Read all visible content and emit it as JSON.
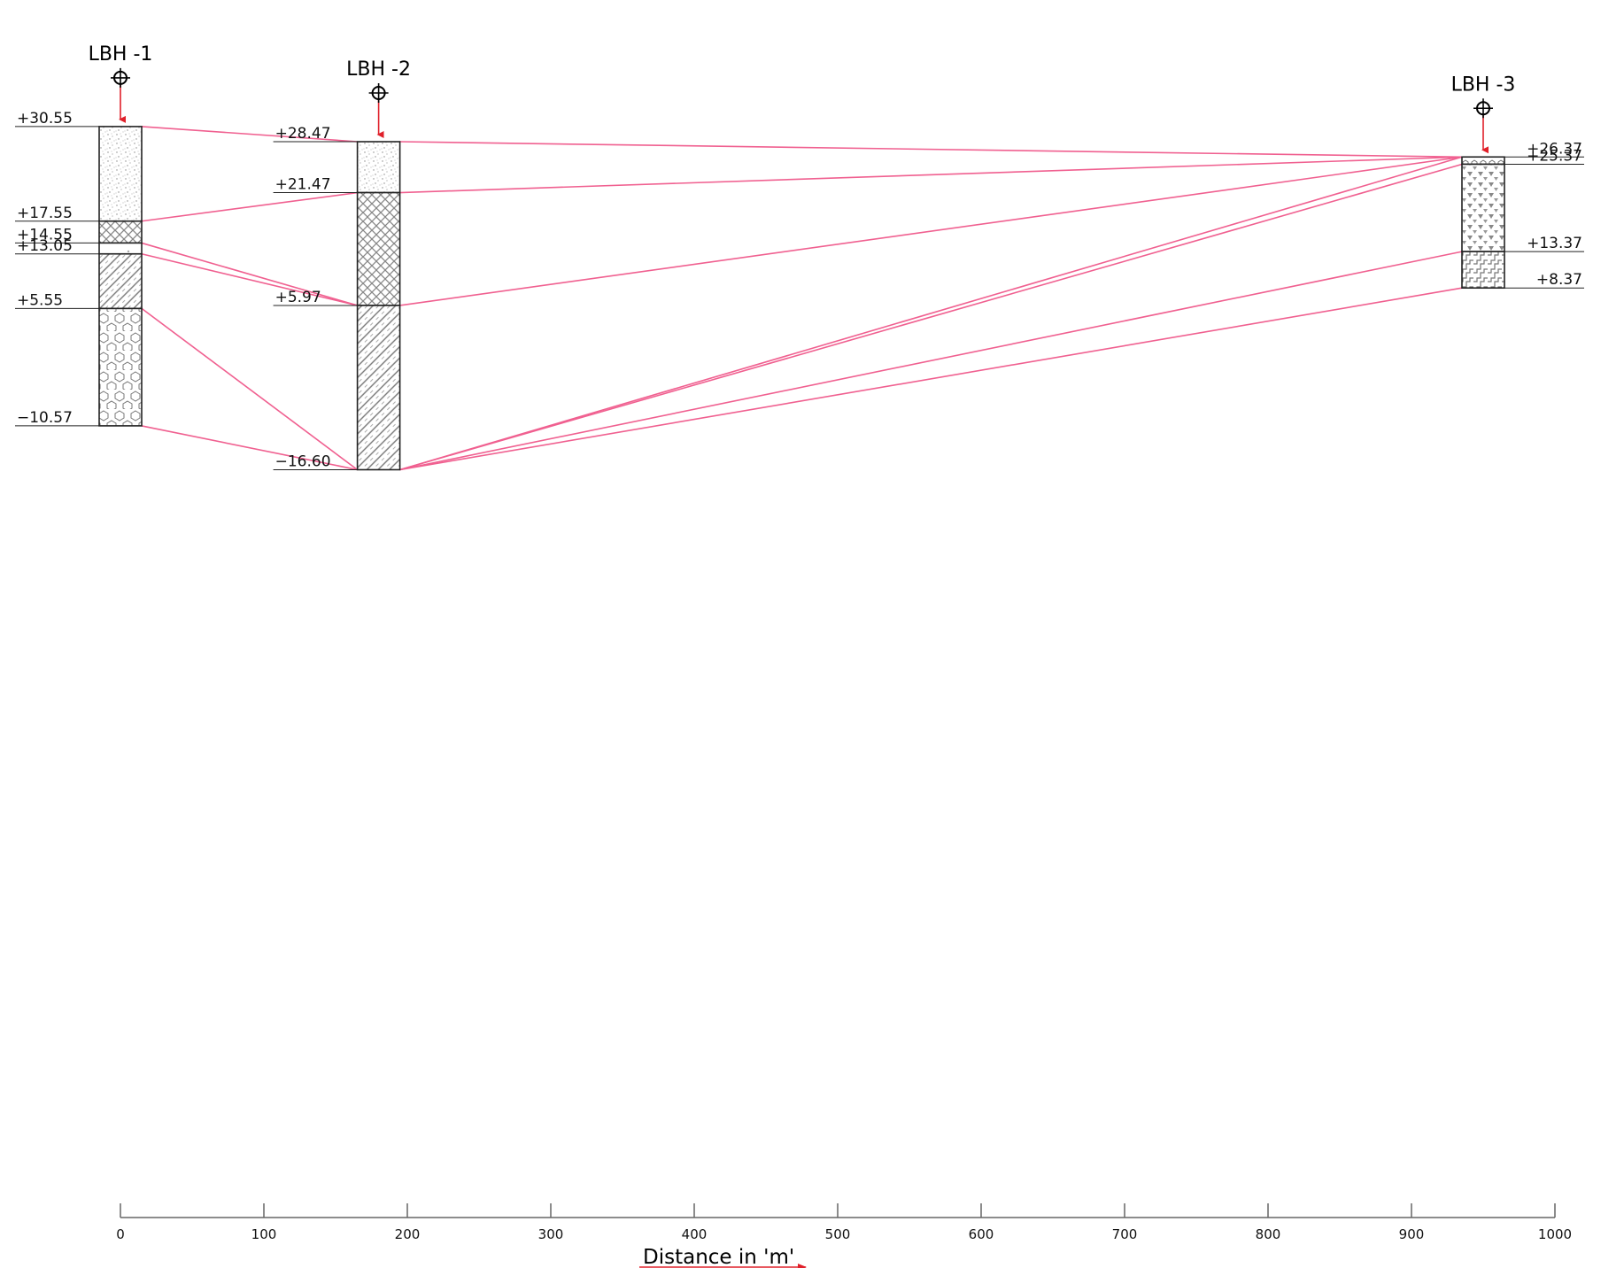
{
  "boreholes": [
    {
      "name": "LBH -1",
      "distance": 0,
      "top": 30.55,
      "layers": [
        {
          "from": 30.55,
          "to": 17.55,
          "pattern": "dots"
        },
        {
          "from": 17.55,
          "to": 14.55,
          "pattern": "crosshatch"
        },
        {
          "from": 14.55,
          "to": 13.05,
          "pattern": "sparse"
        },
        {
          "from": 13.05,
          "to": 5.55,
          "pattern": "diagonal"
        },
        {
          "from": 5.55,
          "to": -10.57,
          "pattern": "hexagons"
        }
      ],
      "level_labels": [
        "+30.55",
        "+17.55",
        "+14.55",
        "+13.05",
        "+5.55",
        "−10.57"
      ]
    },
    {
      "name": "LBH -2",
      "distance": 180,
      "top": 28.47,
      "layers": [
        {
          "from": 28.47,
          "to": 21.47,
          "pattern": "dots"
        },
        {
          "from": 21.47,
          "to": 5.97,
          "pattern": "crosshatch"
        },
        {
          "from": 5.97,
          "to": -16.6,
          "pattern": "diagonal"
        }
      ],
      "level_labels": [
        "+28.47",
        "+21.47",
        "+5.97",
        "−16.60"
      ]
    },
    {
      "name": "LBH -3",
      "distance": 950,
      "top": 26.37,
      "layers": [
        {
          "from": 26.37,
          "to": 25.37,
          "pattern": "hexagons-small"
        },
        {
          "from": 25.37,
          "to": 13.37,
          "pattern": "triangles"
        },
        {
          "from": 13.37,
          "to": 8.37,
          "pattern": "zigzag"
        }
      ],
      "level_labels": [
        "+26.37",
        "+25.37",
        "+13.37",
        "+8.37"
      ]
    }
  ],
  "correlation_lines": [
    {
      "from_bh": 0,
      "from_level": 30.55,
      "to_bh": 1,
      "to_level": 28.47
    },
    {
      "from_bh": 0,
      "from_level": 17.55,
      "to_bh": 1,
      "to_level": 21.47
    },
    {
      "from_bh": 0,
      "from_level": 14.55,
      "to_bh": 1,
      "to_level": 5.97
    },
    {
      "from_bh": 0,
      "from_level": 13.05,
      "to_bh": 1,
      "to_level": 5.97
    },
    {
      "from_bh": 0,
      "from_level": 5.55,
      "to_bh": 1,
      "to_level": -16.6
    },
    {
      "from_bh": 0,
      "from_level": -10.57,
      "to_bh": 1,
      "to_level": -16.6
    },
    {
      "from_bh": 1,
      "from_level": 28.47,
      "to_bh": 2,
      "to_level": 26.37
    },
    {
      "from_bh": 1,
      "from_level": 21.47,
      "to_bh": 2,
      "to_level": 26.37
    },
    {
      "from_bh": 1,
      "from_level": 5.97,
      "to_bh": 2,
      "to_level": 26.37
    },
    {
      "from_bh": 1,
      "from_level": -16.6,
      "to_bh": 2,
      "to_level": 26.37
    },
    {
      "from_bh": 1,
      "from_level": -16.6,
      "to_bh": 2,
      "to_level": 25.37
    },
    {
      "from_bh": 1,
      "from_level": -16.6,
      "to_bh": 2,
      "to_level": 13.37
    },
    {
      "from_bh": 1,
      "from_level": -16.6,
      "to_bh": 2,
      "to_level": 8.37
    }
  ],
  "axis": {
    "title": "Distance in 'm'",
    "min": 0,
    "max": 1000,
    "ticks": [
      0,
      100,
      200,
      300,
      400,
      500,
      600,
      700,
      800,
      900,
      1000
    ]
  },
  "colors": {
    "correlation_line": "#f06090",
    "arrow": "#e0202a",
    "outline": "#222222",
    "pattern": "#777777"
  }
}
